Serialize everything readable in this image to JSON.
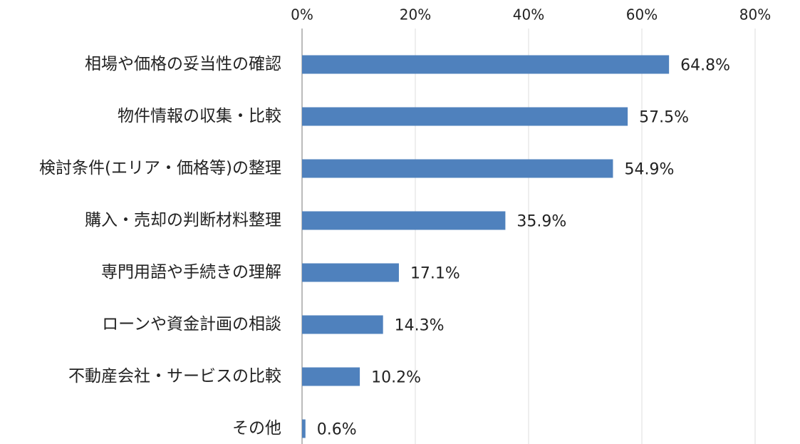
{
  "chart_data": {
    "type": "hbar",
    "categories": [
      "相場や価格の妥当性の確認",
      "物件情報の収集・比較",
      "検討条件(エリア・価格等)の整理",
      "購入・売却の判断材料整理",
      "専門用語や手続きの理解",
      "ローンや資金計画の相談",
      "不動産会社・サービスの比較",
      "その他"
    ],
    "values": [
      64.8,
      57.5,
      54.9,
      35.9,
      17.1,
      14.3,
      10.2,
      0.6
    ],
    "value_labels": [
      "64.8%",
      "57.5%",
      "54.9%",
      "35.9%",
      "17.1%",
      "14.3%",
      "10.2%",
      "0.6%"
    ],
    "color": "#4f81bd",
    "xlim": [
      0,
      80
    ],
    "xticks": [
      {
        "value": 0,
        "label": "0%"
      },
      {
        "value": 20,
        "label": "20%"
      },
      {
        "value": 40,
        "label": "40%"
      },
      {
        "value": 60,
        "label": "60%"
      },
      {
        "value": 80,
        "label": "80%"
      }
    ],
    "grid": true
  }
}
